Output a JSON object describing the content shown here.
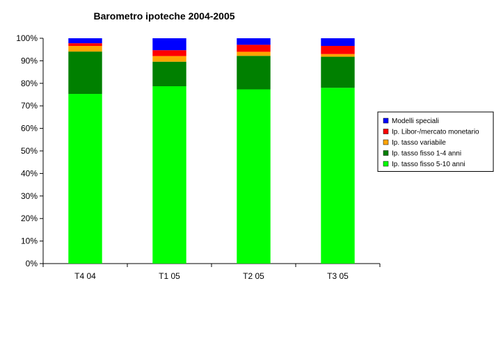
{
  "chart_data": {
    "type": "bar",
    "stacked": true,
    "title": "Barometro ipoteche 2004-2005",
    "xlabel": "",
    "ylabel": "",
    "ylim": [
      0,
      100
    ],
    "y_unit": "%",
    "y_ticks": [
      "0%",
      "10%",
      "20%",
      "30%",
      "40%",
      "50%",
      "60%",
      "70%",
      "80%",
      "90%",
      "100%"
    ],
    "grid": false,
    "legend_position": "right",
    "categories": [
      "T4 04",
      "T1 05",
      "T2 05",
      "T3 05"
    ],
    "series": [
      {
        "name": "Ip. tasso fisso 5-10 anni",
        "color": "#00ff00",
        "values": [
          75.3,
          78.7,
          77.3,
          78.0
        ]
      },
      {
        "name": "Ip. tasso fisso 1-4 anni",
        "color": "#008000",
        "values": [
          18.8,
          10.9,
          14.9,
          13.8
        ]
      },
      {
        "name": "Ip. tasso variabile",
        "color": "#ffa500",
        "values": [
          2.5,
          2.5,
          1.8,
          1.2
        ]
      },
      {
        "name": "Ip. Libor-/mercato monetario",
        "color": "#ff0000",
        "values": [
          1.2,
          2.6,
          3.1,
          3.6
        ]
      },
      {
        "name": "Modelli speciali",
        "color": "#0000ff",
        "values": [
          2.2,
          5.3,
          2.9,
          3.4
        ]
      }
    ],
    "legend_order": [
      "Modelli speciali",
      "Ip. Libor-/mercato monetario",
      "Ip. tasso variabile",
      "Ip. tasso fisso 1-4 anni",
      "Ip. tasso fisso 5-10 anni"
    ]
  }
}
